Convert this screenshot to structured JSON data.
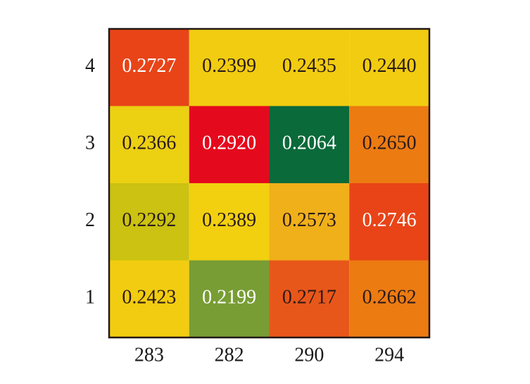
{
  "chart_data": {
    "type": "heatmap",
    "x_categories": [
      "283",
      "282",
      "290",
      "294"
    ],
    "y_categories": [
      "1",
      "2",
      "3",
      "4"
    ],
    "values": [
      [
        0.2423,
        0.2199,
        0.2717,
        0.2662
      ],
      [
        0.2292,
        0.2389,
        0.2573,
        0.2746
      ],
      [
        0.2366,
        0.292,
        0.2064,
        0.265
      ],
      [
        0.2727,
        0.2399,
        0.2435,
        0.244
      ]
    ],
    "value_labels": [
      [
        "0.2423",
        "0.2199",
        "0.2717",
        "0.2662"
      ],
      [
        "0.2292",
        "0.2389",
        "0.2573",
        "0.2746"
      ],
      [
        "0.2366",
        "0.2920",
        "0.2064",
        "0.2650"
      ],
      [
        "0.2727",
        "0.2399",
        "0.2435",
        "0.2440"
      ]
    ],
    "colors": [
      [
        "#f2cc10",
        "#789d34",
        "#e8571a",
        "#ec7b12"
      ],
      [
        "#cbc211",
        "#f2d010",
        "#f0b01a",
        "#e84418"
      ],
      [
        "#ecd012",
        "#e5091d",
        "#0a6a3a",
        "#ec7b12"
      ],
      [
        "#e84418",
        "#f2cc10",
        "#f2cc10",
        "#f2cc10"
      ]
    ],
    "label_colors": [
      [
        "#2a1a1a",
        "#ffffff",
        "#2a1a1a",
        "#2a1a1a"
      ],
      [
        "#2a1a1a",
        "#2a1a1a",
        "#2a1a1a",
        "#ffffff"
      ],
      [
        "#2a1a1a",
        "#ffffff",
        "#ffffff",
        "#2a1a1a"
      ],
      [
        "#ffffff",
        "#2a1a1a",
        "#2a1a1a",
        "#2a1a1a"
      ]
    ]
  }
}
